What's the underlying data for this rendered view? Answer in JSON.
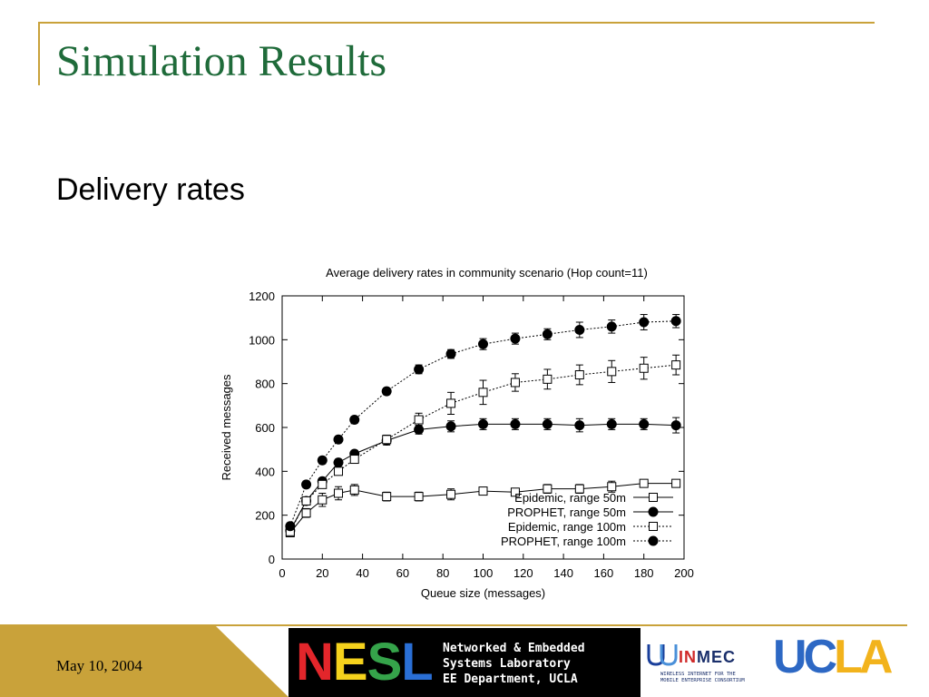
{
  "slide": {
    "title": "Simulation Results",
    "subtitle": "Delivery rates",
    "date": "May 10, 2004",
    "accent": "#c9a23a",
    "title_color": "#1f6b3a"
  },
  "logos": {
    "nesl_letters": [
      "N",
      "E",
      "S",
      "L"
    ],
    "nesl_letter_colors": [
      "#e3262b",
      "#f5d21c",
      "#35a34a",
      "#2a6fd6"
    ],
    "nesl_lines": [
      "Networked & Embedded",
      "Systems Laboratory",
      "EE Department, UCLA"
    ],
    "winmec_name_prefix": "W",
    "winmec_name_hl": "IN",
    "winmec_name_rest": "MEC",
    "winmec_tagline": [
      "WIRELESS INTERNET FOR THE",
      "MOBILE ENTERPRISE CONSORTIUM"
    ],
    "ucla_parts": [
      "UC",
      "LA"
    ],
    "ucla_colors": [
      "#2d68c4",
      "#f2b31c"
    ]
  },
  "chart_data": {
    "type": "line",
    "title": "Average delivery rates in community scenario (Hop count=11)",
    "xlabel": "Queue size (messages)",
    "ylabel": "Received messages",
    "xlim": [
      0,
      200
    ],
    "ylim": [
      0,
      1200
    ],
    "xticks": [
      0,
      20,
      40,
      60,
      80,
      100,
      120,
      140,
      160,
      180,
      200
    ],
    "yticks": [
      0,
      200,
      400,
      600,
      800,
      1000,
      1200
    ],
    "grid": false,
    "legend_position": "bottom-right",
    "series": [
      {
        "name": "Epidemic, range 50m",
        "marker": "open-square",
        "line": "solid",
        "x": [
          4,
          12,
          20,
          28,
          36,
          52,
          68,
          84,
          100,
          116,
          132,
          148,
          164,
          180,
          196
        ],
        "y": [
          120,
          210,
          270,
          300,
          315,
          285,
          285,
          295,
          310,
          305,
          320,
          320,
          330,
          345,
          345
        ],
        "err": [
          15,
          20,
          30,
          30,
          25,
          20,
          20,
          25,
          15,
          15,
          20,
          20,
          25,
          15,
          15
        ]
      },
      {
        "name": "PROPHET, range 50m",
        "marker": "filled-circle",
        "line": "solid",
        "x": [
          4,
          12,
          20,
          28,
          36,
          52,
          68,
          84,
          100,
          116,
          132,
          148,
          164,
          180,
          196
        ],
        "y": [
          130,
          265,
          355,
          440,
          480,
          540,
          590,
          605,
          615,
          615,
          615,
          610,
          615,
          615,
          610
        ],
        "err": [
          15,
          15,
          15,
          15,
          15,
          20,
          20,
          25,
          25,
          25,
          25,
          30,
          25,
          25,
          35
        ]
      },
      {
        "name": "Epidemic, range 100m",
        "marker": "open-square",
        "line": "dotted",
        "x": [
          4,
          12,
          20,
          28,
          36,
          52,
          68,
          84,
          100,
          116,
          132,
          148,
          164,
          180,
          196
        ],
        "y": [
          125,
          265,
          340,
          400,
          455,
          545,
          635,
          710,
          760,
          805,
          820,
          840,
          855,
          870,
          885
        ],
        "err": [
          15,
          15,
          15,
          15,
          15,
          20,
          30,
          50,
          55,
          40,
          45,
          45,
          50,
          50,
          45
        ]
      },
      {
        "name": "PROPHET, range 100m",
        "marker": "filled-circle",
        "line": "dotted",
        "x": [
          4,
          12,
          20,
          28,
          36,
          52,
          68,
          84,
          100,
          116,
          132,
          148,
          164,
          180,
          196
        ],
        "y": [
          150,
          340,
          450,
          545,
          635,
          765,
          865,
          935,
          980,
          1005,
          1025,
          1045,
          1060,
          1080,
          1085
        ],
        "err": [
          15,
          15,
          15,
          15,
          15,
          15,
          20,
          20,
          25,
          25,
          25,
          35,
          30,
          35,
          30
        ]
      }
    ]
  }
}
